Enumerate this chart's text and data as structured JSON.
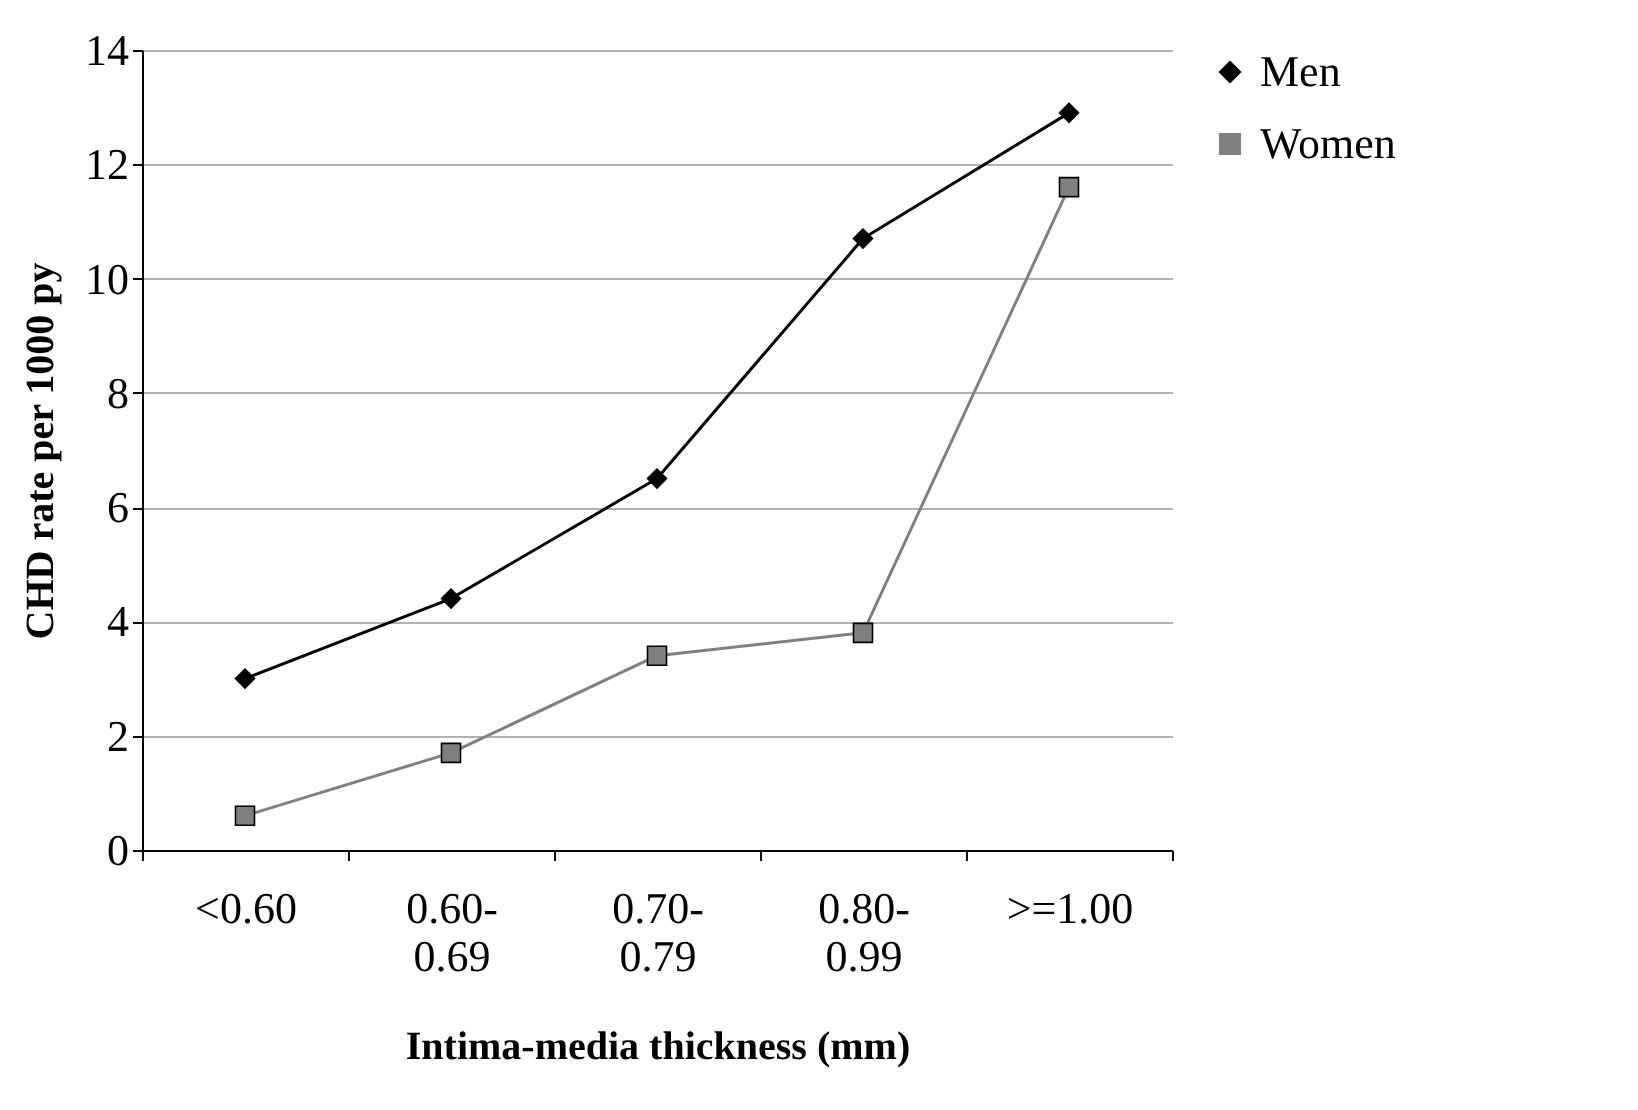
{
  "chart_data": {
    "type": "line",
    "xlabel": "Intima-media thickness (mm)",
    "ylabel": "CHD rate per 1000 py",
    "categories": [
      "<0.60",
      "0.60-0.69",
      "0.70-0.79",
      "0.80-0.99",
      ">=1.00"
    ],
    "series": [
      {
        "name": "Men",
        "color": "#000000",
        "marker": "diamond",
        "values": [
          3.0,
          4.4,
          6.5,
          10.7,
          12.9
        ]
      },
      {
        "name": "Women",
        "color": "#808080",
        "marker": "square",
        "values": [
          0.6,
          1.7,
          3.4,
          3.8,
          11.6
        ]
      }
    ],
    "ylim": [
      0,
      14
    ],
    "yticks": [
      0,
      2,
      4,
      6,
      8,
      10,
      12,
      14
    ],
    "grid": "y",
    "legend": "right",
    "line_style": "solid"
  }
}
